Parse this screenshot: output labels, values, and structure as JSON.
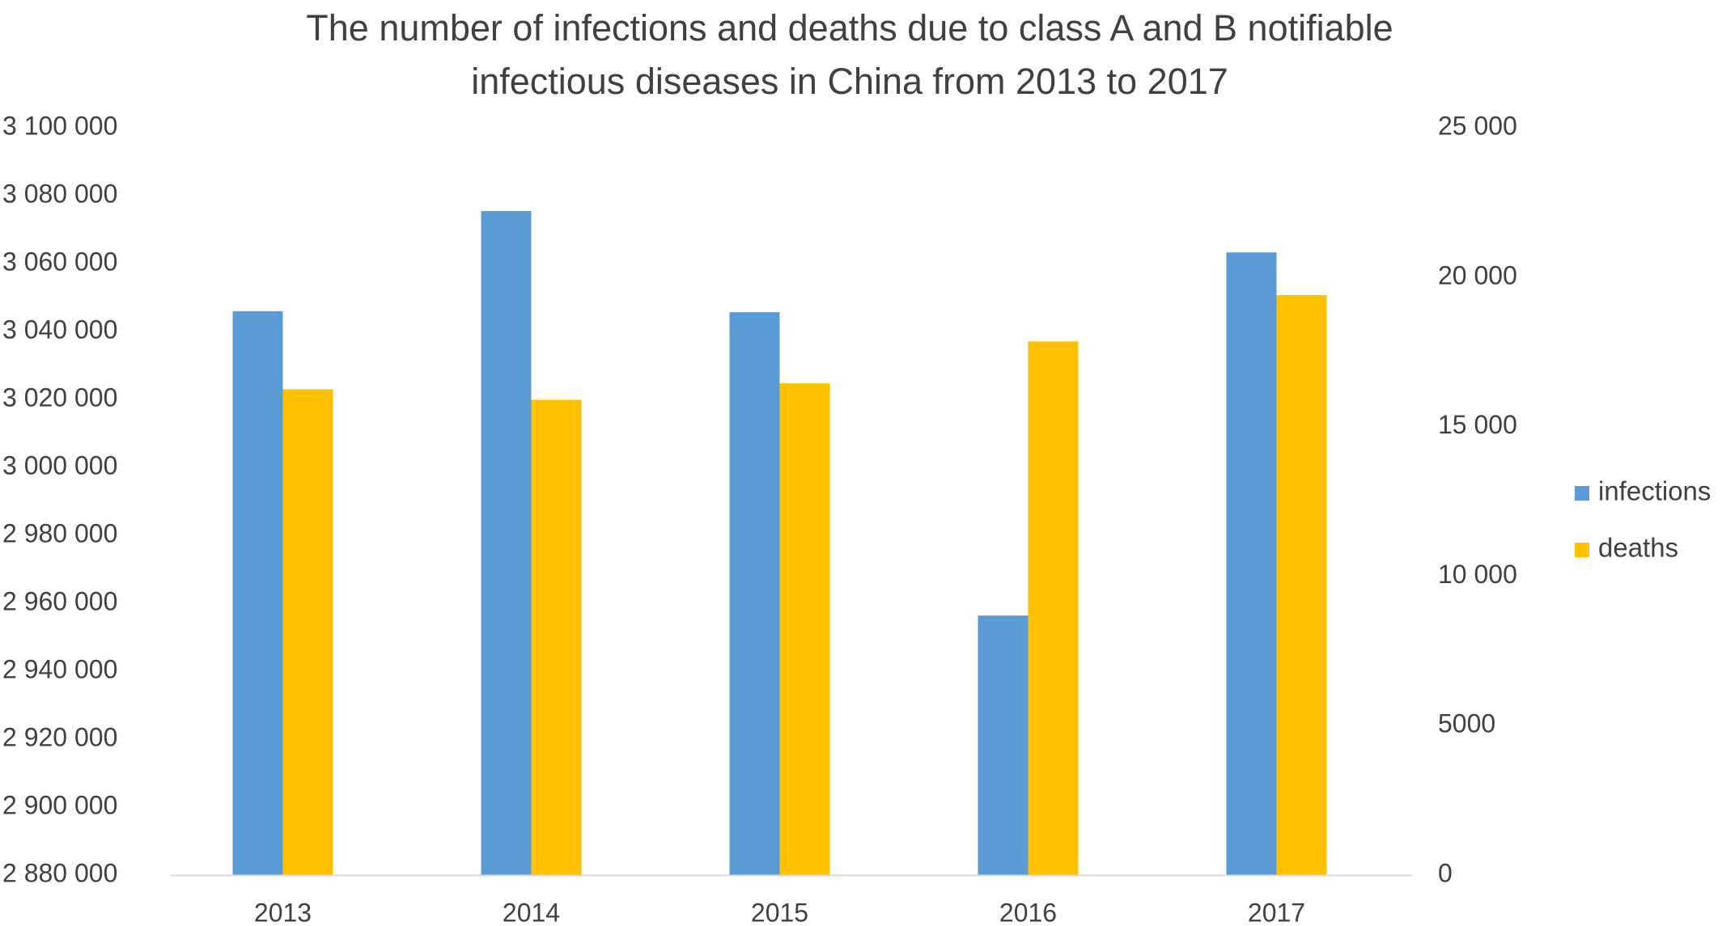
{
  "chart_data": {
    "type": "bar",
    "title": "The number of infections and deaths due to class A and B notifiable infectious diseases in China from 2013 to 2017",
    "title_lines": [
      "The number of infections and deaths due to class A and B notifiable",
      "infectious diseases in China from 2013 to 2017"
    ],
    "xlabel": "",
    "ylabel": "",
    "categories": [
      "2013",
      "2014",
      "2015",
      "2016",
      "2017"
    ],
    "series": [
      {
        "name": "infections",
        "axis": "left",
        "color": "#5B9BD5",
        "values": [
          3046000,
          3075500,
          3045700,
          2956400,
          3063300
        ]
      },
      {
        "name": "deaths",
        "axis": "right",
        "color": "#FFC000",
        "values": [
          16250,
          15900,
          16450,
          17850,
          19400
        ]
      }
    ],
    "y_left": {
      "min": 2880000,
      "max": 3100000,
      "ticks": [
        2880000,
        2900000,
        2920000,
        2940000,
        2960000,
        2980000,
        3000000,
        3020000,
        3040000,
        3060000,
        3080000,
        3100000
      ],
      "tick_labels": [
        "2 880 000",
        "2 900 000",
        "2 920 000",
        "2 940 000",
        "2 960 000",
        "2 980 000",
        "3 000 000",
        "3 020 000",
        "3 040 000",
        "3 060 000",
        "3 080 000",
        "3 100 000"
      ]
    },
    "y_right": {
      "min": 0,
      "max": 25000,
      "ticks": [
        0,
        5000,
        10000,
        15000,
        20000,
        25000
      ],
      "tick_labels": [
        "0",
        "5000",
        "10 000",
        "15 000",
        "20 000",
        "25 000"
      ]
    },
    "grid": false,
    "legend": {
      "position": "right",
      "entries": [
        "infections",
        "deaths"
      ]
    }
  }
}
